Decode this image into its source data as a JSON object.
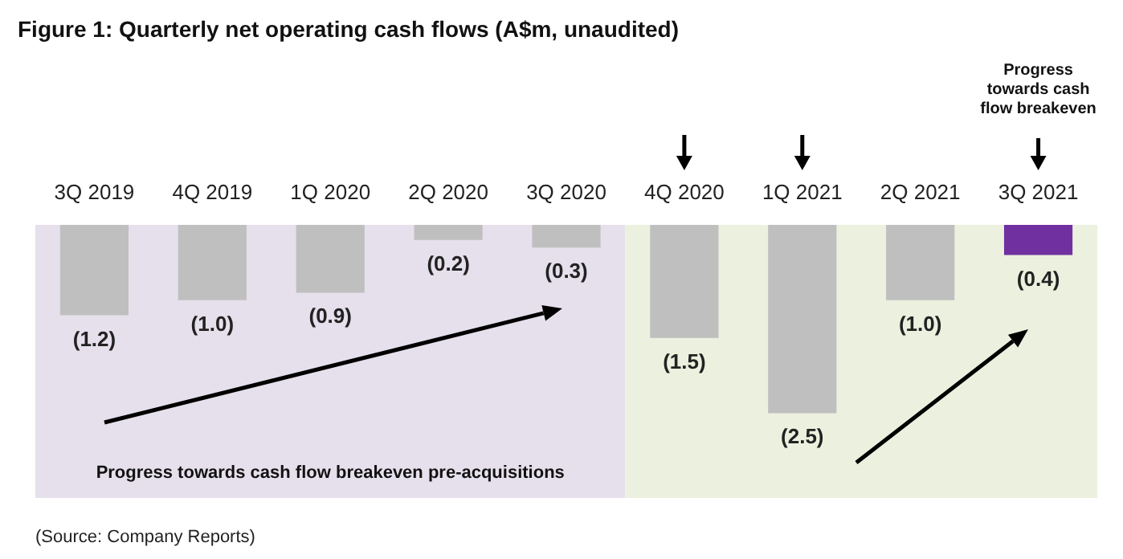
{
  "chart_data": {
    "type": "bar",
    "title": "Figure 1: Quarterly net operating cash flows (A$m, unaudited)",
    "categories": [
      "3Q 2019",
      "4Q 2019",
      "1Q 2020",
      "2Q 2020",
      "3Q 2020",
      "4Q 2020",
      "1Q 2021",
      "2Q 2021",
      "3Q 2021"
    ],
    "values": [
      -1.2,
      -1.0,
      -0.9,
      -0.2,
      -0.3,
      -1.5,
      -2.5,
      -1.0,
      -0.4
    ],
    "colors": [
      "#bfbfbf",
      "#bfbfbf",
      "#bfbfbf",
      "#bfbfbf",
      "#bfbfbf",
      "#bfbfbf",
      "#bfbfbf",
      "#bfbfbf",
      "#7030a0"
    ],
    "value_labels": [
      "(1.2)",
      "(1.0)",
      "(0.9)",
      "(0.2)",
      "(0.3)",
      "(1.5)",
      "(2.5)",
      "(1.0)",
      "(0.4)"
    ],
    "bands": [
      {
        "axis": "x",
        "from": "3Q 2019",
        "to": "3Q 2020",
        "color": "#e6e0ec",
        "label": "Progress towards cash flow breakeven pre-acquisitions"
      },
      {
        "axis": "x",
        "from": "4Q 2020",
        "to": "3Q 2021",
        "color": "#ebf1de"
      }
    ],
    "annotations": [
      "Progress\ntowards cash\nflow breakeven",
      "(Source: Company Reports)"
    ],
    "grid": false
  }
}
